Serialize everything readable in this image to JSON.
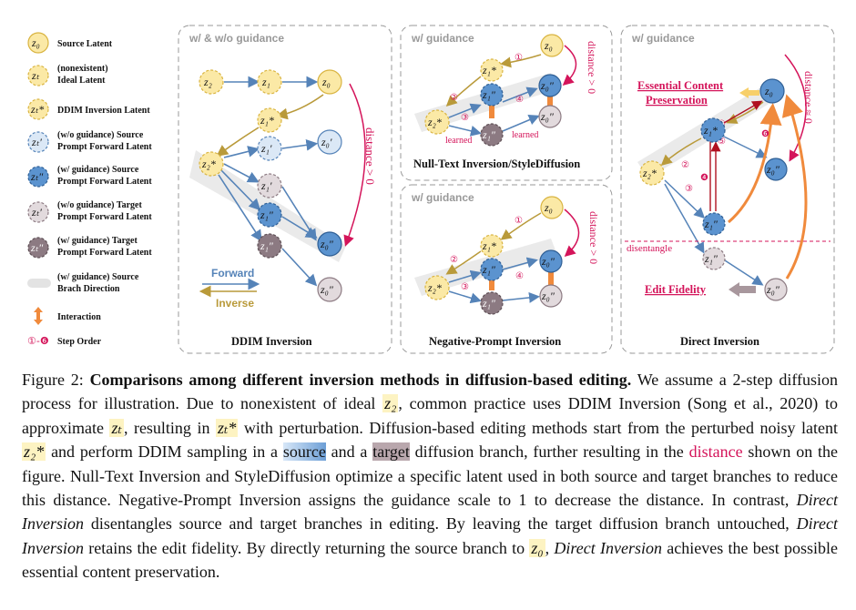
{
  "legend": {
    "items": [
      {
        "symbol": "z0",
        "label": [
          "Source Latent"
        ]
      },
      {
        "symbol": "zt",
        "label": [
          "(nonexistent)",
          "Ideal Latent"
        ]
      },
      {
        "symbol": "zt*",
        "label": [
          "DDIM Inversion Latent"
        ]
      },
      {
        "symbol": "zt'",
        "label": [
          "(w/o guidance) Source",
          "Prompt Forward Latent"
        ]
      },
      {
        "symbol": "zt''",
        "label": [
          "(w/ guidance) Source",
          "Prompt Forward Latent"
        ]
      },
      {
        "symbol": "zt'",
        "label": [
          "(w/o guidance) Target",
          "Prompt Forward Latent"
        ]
      },
      {
        "symbol": "zt''",
        "label": [
          "(w/ guidance) Target",
          "Prompt Forward Latent"
        ]
      },
      {
        "symbol": "",
        "label": [
          "(w/ guidance) Source",
          "Brach Direction"
        ]
      },
      {
        "symbol": "",
        "label": [
          "Interaction"
        ]
      },
      {
        "symbol": "①-❻",
        "label": [
          "Step Order"
        ]
      }
    ],
    "forward_label": "Forward",
    "inverse_label": "Inverse"
  },
  "panels": {
    "ddim": {
      "title": "w/ & w/o guidance",
      "caption": "DDIM Inversion",
      "distance": "distance > 0"
    },
    "nulltext": {
      "title": "w/ guidance",
      "caption": "Null-Text Inversion/StyleDiffusion",
      "distance": "distance > 0",
      "learned": "learned"
    },
    "negprompt": {
      "title": "w/ guidance",
      "caption": "Negative-Prompt Inversion",
      "distance": "distance > 0"
    },
    "direct": {
      "title": "w/ guidance",
      "caption": "Direct Inversion",
      "distance": "distance ≈ 0",
      "preservation": [
        "Essential Content",
        "Preservation"
      ],
      "fidelity": "Edit Fidelity",
      "disentangle": "disentangle"
    }
  },
  "symbols": {
    "z0": "z₀",
    "z1": "z₁",
    "z2": "z₂",
    "z1s": "z₁*",
    "z2s": "z₂*",
    "z0p": "z₀′",
    "z1p": "z₁′",
    "z0pp": "z₀″",
    "z1pp": "z₁″",
    "zt": "zₜ",
    "zts": "zₜ*",
    "ztp": "zₜ′",
    "ztpp": "zₜ″",
    "steps": [
      "①",
      "②",
      "③",
      "④",
      "⑤",
      "❶",
      "❹",
      "❻"
    ]
  },
  "caption": {
    "label": "Figure 2:",
    "bold": "Comparisons among different inversion methods in diffusion-based editing.",
    "t1": " We assume a 2-step diffusion process for illustration. Due to nonexistent of ideal ",
    "m_z2": "z₂",
    "t2": ", common practice uses DDIM Inversion (Song et al., 2020) to approximate ",
    "m_zt": "zₜ",
    "t3": ", resulting in ",
    "m_zts": "zₜ*",
    "t4": " with perturbation. Diffusion-based editing methods start from the perturbed noisy latent ",
    "m_z2s": "z₂*",
    "t5": " and perform DDIM sampling in a ",
    "source": "source",
    "t6": " and a ",
    "target": "target",
    "t7": " diffusion branch, further resulting in the ",
    "distance": "distance",
    "t8": " shown on the figure. Null-Text Inversion and StyleDiffusion optimize a specific latent used in both source and target branches to reduce this distance. Negative-Prompt Inversion assigns the guidance scale to 1 to decrease the distance. In contrast, ",
    "di1": "Direct Inversion",
    "t9": " disentangles source and target branches in editing. By leaving the target diffusion branch untouched, ",
    "di2": "Direct Inversion",
    "t10": " retains the edit fidelity. By directly returning the source branch to ",
    "m_z0": "z₀",
    "t11": ", ",
    "di3": "Direct Inversion",
    "t12": " achieves the best possible essential content preservation."
  },
  "colors": {
    "yellow_fill": "#fbe9a6",
    "yellow_stroke": "#d9b441",
    "blue_fill": "#5b93cf",
    "blue_light": "#cfe0f3",
    "blue_stroke": "#2f5f95",
    "purple_fill": "#8c7a82",
    "purple_light": "#e2dadd",
    "orange": "#f08a3c",
    "red": "#d4145a",
    "dark_red": "#b01020",
    "arrow_blue": "#5583b8",
    "arrow_gold": "#b99a3a"
  }
}
